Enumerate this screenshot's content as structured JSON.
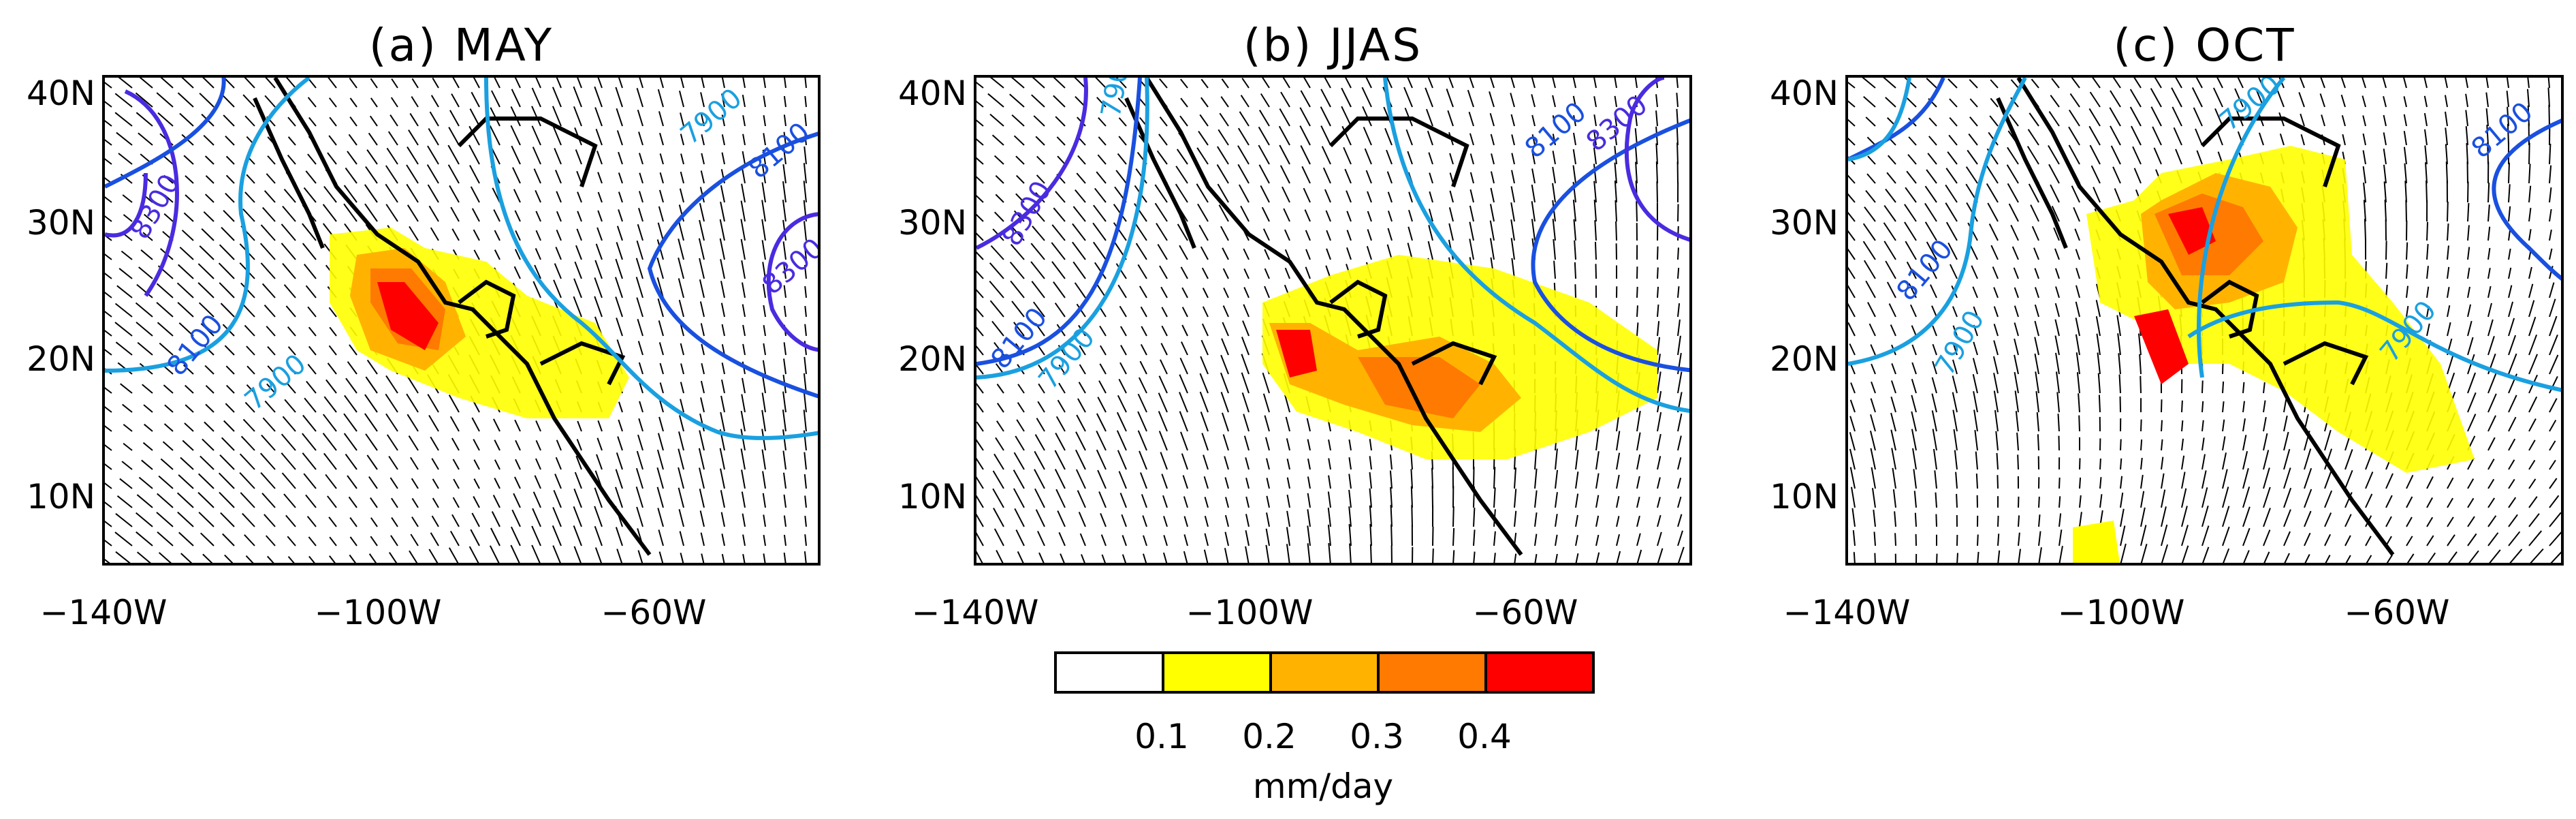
{
  "panels": [
    {
      "title": "(a) MAY"
    },
    {
      "title": "(b) JJAS"
    },
    {
      "title": "(c) OCT"
    }
  ],
  "axis": {
    "y_ticks": [
      "40N",
      "30N",
      "20N",
      "10N"
    ],
    "x_ticks": [
      "−140W",
      "−100W",
      "−60W"
    ]
  },
  "colorbar": {
    "colors": [
      "#ffffff",
      "#ffff00",
      "#ffb300",
      "#ff7a00",
      "#ff0000"
    ],
    "labels": [
      "0.1",
      "0.2",
      "0.3",
      "0.4"
    ],
    "unit": "mm/day"
  },
  "chart_data": [
    {
      "type": "heatmap",
      "title": "(a) MAY",
      "xlim": [
        -150,
        -45
      ],
      "ylim": [
        5,
        40
      ],
      "x_ticks": [
        -140,
        -100,
        -60
      ],
      "y_ticks": [
        10,
        20,
        30,
        40
      ],
      "contour_labels": [
        "8300",
        "8100",
        "7900",
        "7900",
        "8100",
        "8300"
      ]
    },
    {
      "type": "heatmap",
      "title": "(b) JJAS",
      "xlim": [
        -150,
        -45
      ],
      "ylim": [
        5,
        40
      ],
      "x_ticks": [
        -140,
        -100,
        -60
      ],
      "y_ticks": [
        10,
        20,
        30,
        40
      ],
      "contour_labels": [
        "8300",
        "8100",
        "7900",
        "7900",
        "8100",
        "8300"
      ]
    },
    {
      "type": "heatmap",
      "title": "(c) OCT",
      "xlim": [
        -150,
        -45
      ],
      "ylim": [
        5,
        40
      ],
      "x_ticks": [
        -140,
        -100,
        -60
      ],
      "y_ticks": [
        10,
        20,
        30,
        40
      ],
      "contour_labels": [
        "7900",
        "8100",
        "8100",
        "7900",
        "7900"
      ]
    }
  ]
}
